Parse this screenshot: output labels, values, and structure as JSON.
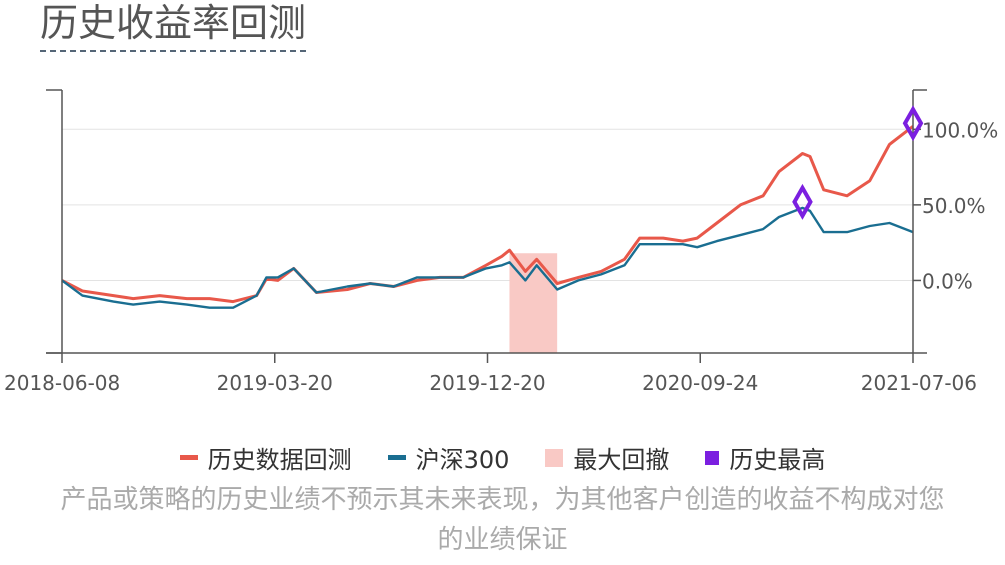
{
  "title": "历史收益率回测",
  "disclaimer": "产品或策略的历史业绩不预示其未来表现，为其他客户创造的收益不构成对您的业绩保证",
  "colors": {
    "strategy": "#e8584a",
    "benchmark": "#1a6e91",
    "drawdown": "#f9c9c5",
    "peak": "#7b1fe0",
    "axis": "#555555",
    "grid": "#e3e3e3"
  },
  "legend": [
    {
      "label": "历史数据回测",
      "kind": "line",
      "color": "#e8584a"
    },
    {
      "label": "沪深300",
      "kind": "line",
      "color": "#1a6e91"
    },
    {
      "label": "最大回撤",
      "kind": "rect",
      "color": "#f9c9c5"
    },
    {
      "label": "历史最高",
      "kind": "diamond",
      "color": "#7b1fe0"
    }
  ],
  "chart_data": {
    "type": "line",
    "title": "历史收益率回测",
    "x_tick_labels": [
      "2018-06-08",
      "2019-03-20",
      "2019-12-20",
      "2020-09-24",
      "2021-07-06"
    ],
    "x_range": [
      "2018-06-08",
      "2021-07-06"
    ],
    "y_tick_labels": [
      "100.0%",
      "50.0%",
      "0.0%"
    ],
    "y_ticks": [
      100,
      50,
      0
    ],
    "y_range": [
      -48,
      126
    ],
    "y_unit": "%",
    "y_axis_side": "right",
    "grid": "horizontal",
    "legend_position": "bottom",
    "series": [
      {
        "name": "历史数据回测",
        "color": "#e8584a",
        "points": [
          [
            "2018-06-08",
            0
          ],
          [
            "2018-07-05",
            -7
          ],
          [
            "2018-08-15",
            -10
          ],
          [
            "2018-09-10",
            -12
          ],
          [
            "2018-10-15",
            -10
          ],
          [
            "2018-11-20",
            -12
          ],
          [
            "2018-12-20",
            -12
          ],
          [
            "2019-01-20",
            -14
          ],
          [
            "2019-02-20",
            -10
          ],
          [
            "2019-03-05",
            1
          ],
          [
            "2019-03-20",
            0
          ],
          [
            "2019-04-10",
            8
          ],
          [
            "2019-05-10",
            -8
          ],
          [
            "2019-06-20",
            -6
          ],
          [
            "2019-07-20",
            -2
          ],
          [
            "2019-08-20",
            -4
          ],
          [
            "2019-09-20",
            0
          ],
          [
            "2019-10-20",
            2
          ],
          [
            "2019-11-20",
            2
          ],
          [
            "2019-12-20",
            10
          ],
          [
            "2020-01-10",
            16
          ],
          [
            "2020-01-20",
            20
          ],
          [
            "2020-02-10",
            6
          ],
          [
            "2020-02-25",
            14
          ],
          [
            "2020-03-23",
            -2
          ],
          [
            "2020-04-20",
            2
          ],
          [
            "2020-05-20",
            6
          ],
          [
            "2020-06-20",
            14
          ],
          [
            "2020-07-10",
            28
          ],
          [
            "2020-08-10",
            28
          ],
          [
            "2020-09-05",
            26
          ],
          [
            "2020-09-24",
            28
          ],
          [
            "2020-10-20",
            38
          ],
          [
            "2020-11-20",
            50
          ],
          [
            "2020-12-20",
            56
          ],
          [
            "2021-01-10",
            72
          ],
          [
            "2021-02-10",
            84
          ],
          [
            "2021-02-20",
            82
          ],
          [
            "2021-03-10",
            60
          ],
          [
            "2021-04-10",
            56
          ],
          [
            "2021-05-10",
            66
          ],
          [
            "2021-06-05",
            90
          ],
          [
            "2021-07-06",
            102
          ]
        ]
      },
      {
        "name": "沪深300",
        "color": "#1a6e91",
        "points": [
          [
            "2018-06-08",
            0
          ],
          [
            "2018-07-05",
            -10
          ],
          [
            "2018-08-15",
            -14
          ],
          [
            "2018-09-10",
            -16
          ],
          [
            "2018-10-15",
            -14
          ],
          [
            "2018-11-20",
            -16
          ],
          [
            "2018-12-20",
            -18
          ],
          [
            "2019-01-20",
            -18
          ],
          [
            "2019-02-20",
            -10
          ],
          [
            "2019-03-05",
            2
          ],
          [
            "2019-03-20",
            2
          ],
          [
            "2019-04-10",
            8
          ],
          [
            "2019-05-10",
            -8
          ],
          [
            "2019-06-20",
            -4
          ],
          [
            "2019-07-20",
            -2
          ],
          [
            "2019-08-20",
            -4
          ],
          [
            "2019-09-20",
            2
          ],
          [
            "2019-10-20",
            2
          ],
          [
            "2019-11-20",
            2
          ],
          [
            "2019-12-20",
            8
          ],
          [
            "2020-01-10",
            10
          ],
          [
            "2020-01-20",
            12
          ],
          [
            "2020-02-10",
            0
          ],
          [
            "2020-02-25",
            10
          ],
          [
            "2020-03-23",
            -6
          ],
          [
            "2020-04-20",
            0
          ],
          [
            "2020-05-20",
            4
          ],
          [
            "2020-06-20",
            10
          ],
          [
            "2020-07-10",
            24
          ],
          [
            "2020-08-10",
            24
          ],
          [
            "2020-09-05",
            24
          ],
          [
            "2020-09-24",
            22
          ],
          [
            "2020-10-20",
            26
          ],
          [
            "2020-11-20",
            30
          ],
          [
            "2020-12-20",
            34
          ],
          [
            "2021-01-10",
            42
          ],
          [
            "2021-02-10",
            48
          ],
          [
            "2021-02-20",
            46
          ],
          [
            "2021-03-10",
            32
          ],
          [
            "2021-04-10",
            32
          ],
          [
            "2021-05-10",
            36
          ],
          [
            "2021-06-05",
            38
          ],
          [
            "2021-07-06",
            32
          ]
        ]
      }
    ],
    "max_drawdown": {
      "start": "2020-01-20",
      "end": "2020-03-23"
    },
    "peaks": [
      {
        "date": "2021-02-10",
        "value": 52
      },
      {
        "date": "2021-07-06",
        "value": 104
      }
    ]
  }
}
